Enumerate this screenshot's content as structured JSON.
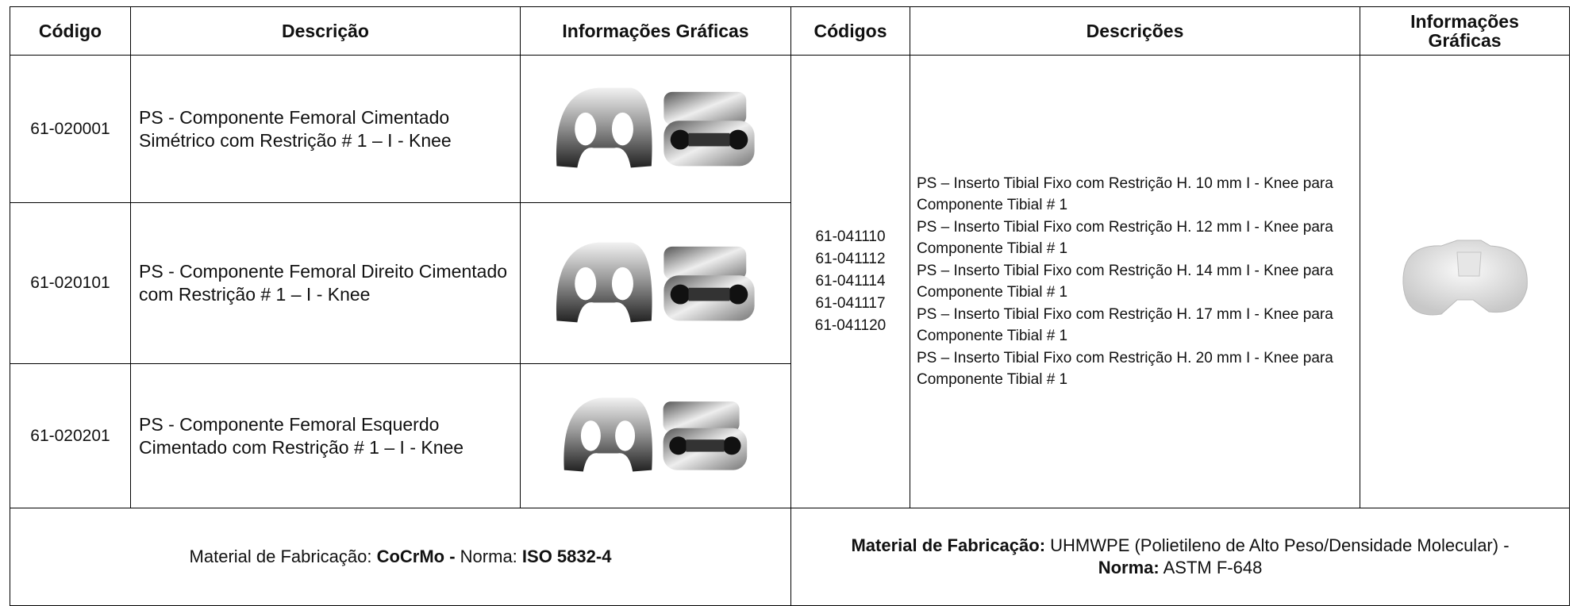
{
  "header": {
    "left": [
      "Código",
      "Descrição",
      "Informações Gráficas"
    ],
    "right": [
      "Códigos",
      "Descrições",
      "Informações Gráficas"
    ]
  },
  "rows": [
    {
      "code": "61-020001",
      "description": "PS - Componente Femoral Cimentado Simétrico com Restrição # 1 – I - Knee"
    },
    {
      "code": "61-020101",
      "description": "PS - Componente Femoral Direito Cimentado com Restrição # 1 – I - Knee"
    },
    {
      "code": "61-020201",
      "description": "PS - Componente Femoral Esquerdo Cimentado com Restrição # 1 – I - Knee"
    }
  ],
  "insert": {
    "codes": [
      "61-041110",
      "61-041112",
      "61-041114",
      "61-041117",
      "61-041120"
    ],
    "descriptions": [
      "PS – Inserto Tibial Fixo com Restrição H. 10 mm I - Knee para Componente Tibial # 1",
      "PS – Inserto Tibial Fixo com Restrição H. 12 mm I - Knee para Componente Tibial # 1",
      "PS – Inserto Tibial Fixo com Restrição H. 14 mm I - Knee para Componente Tibial # 1",
      "PS – Inserto Tibial Fixo com Restrição H. 17 mm I - Knee para Componente Tibial # 1",
      "PS – Inserto Tibial Fixo com Restrição H. 20 mm I - Knee para Componente Tibial # 1"
    ]
  },
  "footer": {
    "left": [
      "Material de Fabricação:",
      "CoCrMo -",
      "Norma:",
      "ISO 5832-4"
    ],
    "right": [
      "Material de Fabricação:",
      "UHMWPE (Polietileno de Alto Peso/Densidade Molecular) -",
      "Norma:",
      "ASTM F-648"
    ]
  }
}
